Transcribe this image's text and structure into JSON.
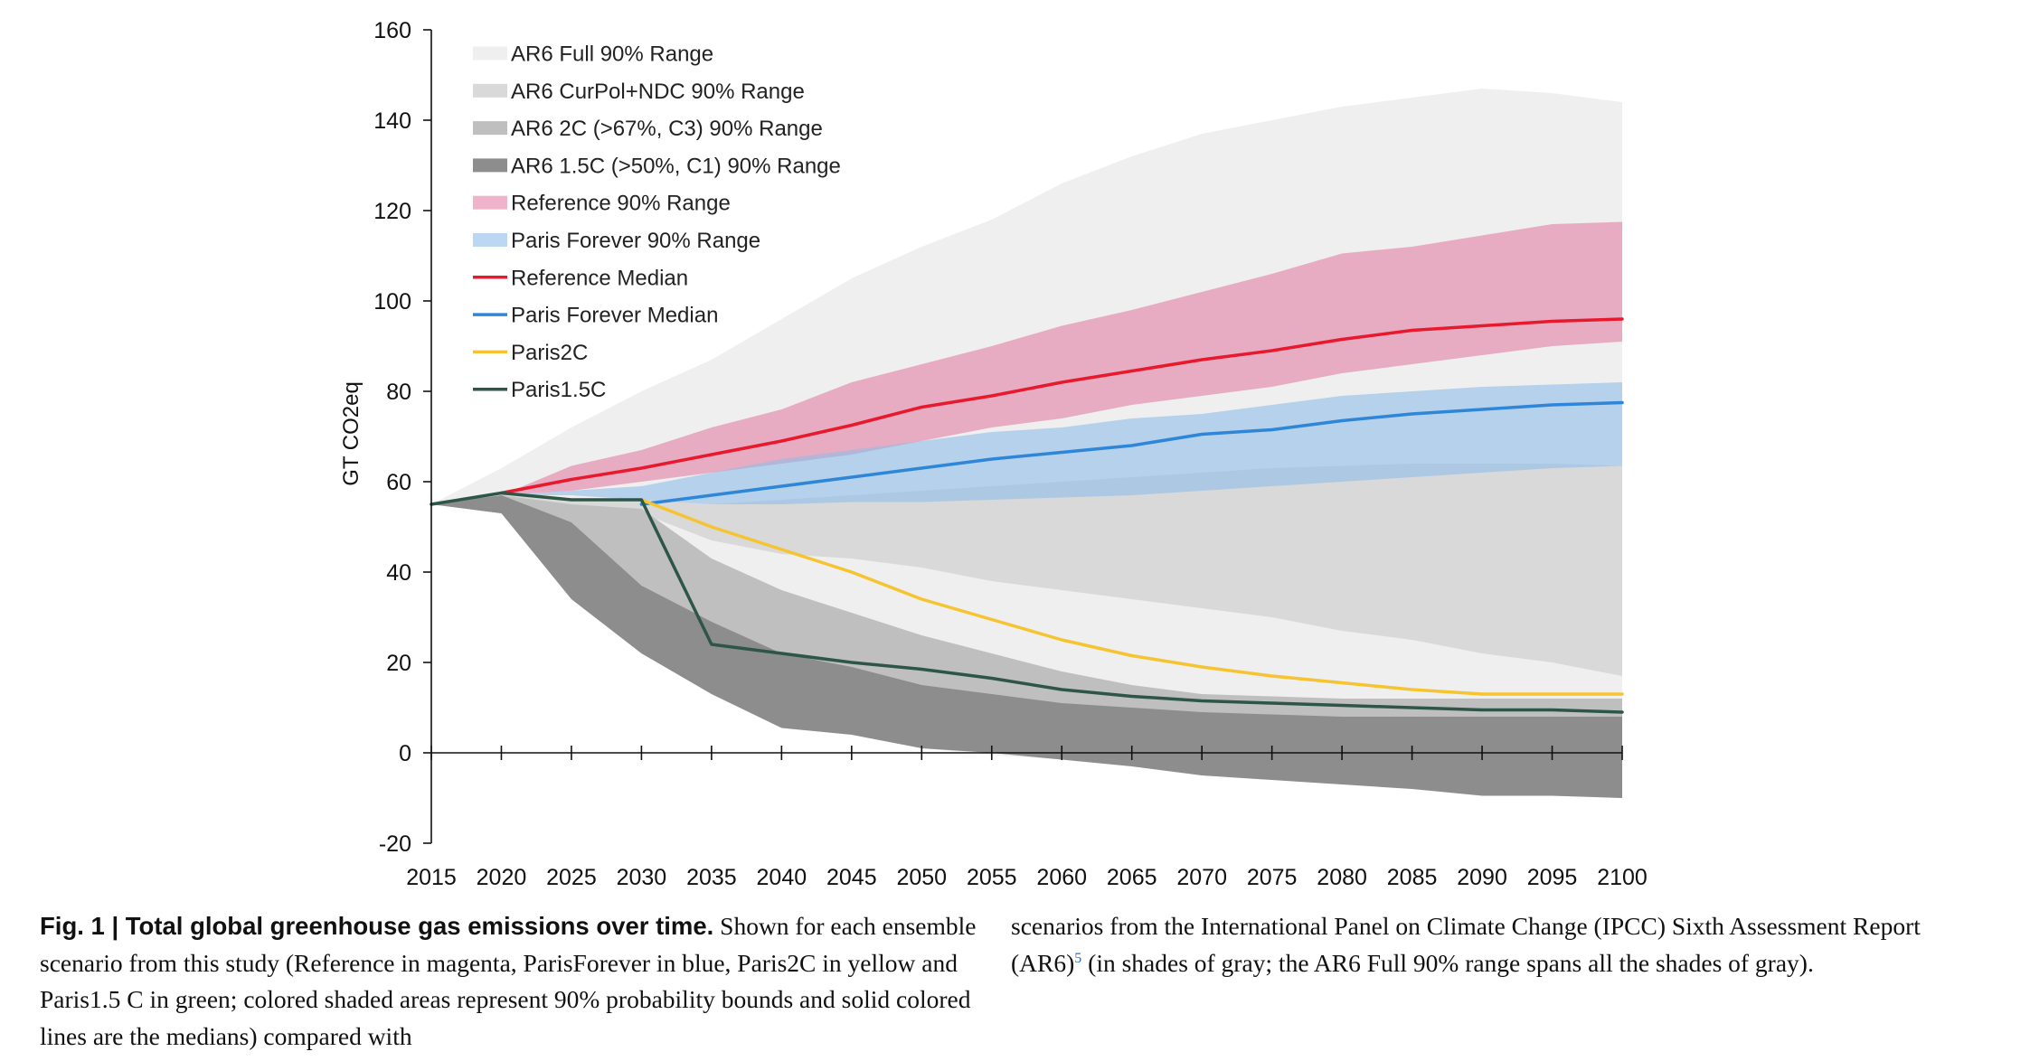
{
  "chart_data": {
    "type": "area",
    "ylabel": "GT CO2eq",
    "xlabel": "",
    "title": "",
    "x": [
      2015,
      2020,
      2025,
      2030,
      2035,
      2040,
      2045,
      2050,
      2055,
      2060,
      2065,
      2070,
      2075,
      2080,
      2085,
      2090,
      2095,
      2100
    ],
    "xticks": [
      "2015",
      "2020",
      "2025",
      "2030",
      "2035",
      "2040",
      "2045",
      "2050",
      "2055",
      "2060",
      "2065",
      "2070",
      "2075",
      "2080",
      "2085",
      "2090",
      "2095",
      "2100"
    ],
    "ylim": [
      -20,
      160
    ],
    "yticks": [
      "-20",
      "0",
      "20",
      "40",
      "60",
      "80",
      "100",
      "120",
      "140",
      "160"
    ],
    "grid": false,
    "legend_position": "top-left",
    "bands": [
      {
        "name": "AR6 Full 90% Range",
        "color": "#efefef",
        "opacity": 1,
        "low": [
          55,
          53,
          36,
          23,
          13,
          5.5,
          4,
          1,
          -0.5,
          -1.5,
          -3,
          -5,
          -6,
          -7,
          -8,
          -9,
          -9.5,
          -10
        ],
        "high": [
          55,
          63,
          72,
          80,
          87,
          96,
          105,
          112,
          118,
          126,
          132,
          137,
          140,
          143,
          145,
          147,
          146,
          144
        ]
      },
      {
        "name": "AR6 CurPol+NDC 90% Range",
        "color": "#d9d9d9",
        "opacity": 1,
        "low": [
          55,
          57,
          55,
          53,
          47,
          44,
          43,
          41,
          38,
          36,
          34,
          32,
          30,
          27,
          25,
          22,
          20,
          17
        ],
        "high": [
          55,
          57,
          56,
          56,
          55,
          56,
          57,
          58,
          59,
          60,
          61,
          62,
          63,
          63.5,
          64,
          64,
          64,
          63.5
        ]
      },
      {
        "name": "AR6 2C (>67%, C3) 90% Range",
        "color": "#bfbfbf",
        "opacity": 1,
        "low": [
          55,
          53,
          40,
          32,
          23,
          20,
          16,
          13,
          11,
          8,
          6,
          4,
          2,
          0,
          -2,
          -5,
          -6,
          -7
        ],
        "high": [
          55,
          57,
          55,
          54,
          43,
          36,
          31,
          26,
          22,
          18,
          15,
          13,
          12.5,
          12,
          12,
          12,
          12,
          12
        ]
      },
      {
        "name": "AR6 1.5C (>50%, C1) 90% Range",
        "color": "#8d8d8d",
        "opacity": 1,
        "low": [
          55,
          53,
          34,
          22,
          13,
          5.5,
          4,
          1,
          0,
          -1.5,
          -3,
          -5,
          -6,
          -7,
          -8,
          -9.5,
          -9.5,
          -10
        ],
        "high": [
          55,
          57,
          51,
          37,
          29,
          22,
          19,
          15,
          13,
          11,
          10,
          9,
          8.5,
          8,
          8,
          8,
          8,
          8
        ]
      },
      {
        "name": "Reference 90% Range",
        "color": "#e06a93",
        "opacity": 0.5,
        "low": [
          55,
          57,
          58,
          60,
          62,
          64,
          66,
          69,
          72,
          74,
          77,
          79,
          81,
          84,
          86,
          88,
          90,
          91
        ],
        "high": [
          55,
          57,
          63.5,
          67,
          72,
          76,
          82,
          86,
          90,
          94.5,
          98,
          102,
          106,
          110.5,
          112,
          114.5,
          117,
          117.5
        ]
      },
      {
        "name": "Paris Forever 90% Range",
        "color": "#8fbde8",
        "opacity": 0.6,
        "low": [
          55,
          57,
          57,
          56,
          55,
          55,
          55.5,
          55.5,
          56,
          56.5,
          57,
          58,
          59,
          60,
          61,
          62,
          63,
          63.5
        ],
        "high": [
          55,
          57,
          58,
          59,
          62,
          65,
          67,
          69,
          71,
          72,
          74,
          75,
          77,
          79,
          80,
          81,
          81.5,
          82
        ]
      }
    ],
    "series": [
      {
        "name": "Reference Median",
        "color": "#e8192c",
        "width": 3.5,
        "x": [
          2020,
          2025,
          2030,
          2035,
          2040,
          2045,
          2050,
          2055,
          2060,
          2065,
          2070,
          2075,
          2080,
          2085,
          2090,
          2095,
          2100
        ],
        "values": [
          57.5,
          60.5,
          63,
          66,
          69,
          72.5,
          76.5,
          79,
          82,
          84.5,
          87,
          89,
          91.5,
          93.5,
          94.5,
          95.5,
          96
        ]
      },
      {
        "name": "Paris Forever Median",
        "color": "#2e86d9",
        "width": 3.5,
        "x": [
          2030,
          2035,
          2040,
          2045,
          2050,
          2055,
          2060,
          2065,
          2070,
          2075,
          2080,
          2085,
          2090,
          2095,
          2100
        ],
        "values": [
          55,
          57,
          59,
          61,
          63,
          65,
          66.5,
          68,
          70.5,
          71.5,
          73.5,
          75,
          76,
          77,
          77.5
        ]
      },
      {
        "name": "Paris2C",
        "color": "#f5c430",
        "width": 3.5,
        "x": [
          2030,
          2035,
          2040,
          2045,
          2050,
          2055,
          2060,
          2065,
          2070,
          2075,
          2080,
          2085,
          2090,
          2095,
          2100
        ],
        "values": [
          56,
          50,
          45,
          40,
          34,
          29.5,
          25,
          21.5,
          19,
          17,
          15.5,
          14,
          13,
          13,
          13
        ]
      },
      {
        "name": "Paris1.5C",
        "color": "#2e5646",
        "width": 3.5,
        "x": [
          2015,
          2020,
          2025,
          2030,
          2035,
          2040,
          2045,
          2050,
          2055,
          2060,
          2065,
          2070,
          2075,
          2080,
          2085,
          2090,
          2095,
          2100
        ],
        "values": [
          55,
          57.5,
          56,
          56,
          24,
          22,
          20,
          18.5,
          16.5,
          14,
          12.5,
          11.5,
          11,
          10.5,
          10,
          9.5,
          9.5,
          9
        ]
      }
    ]
  },
  "caption": {
    "fig_label": "Fig. 1 | Total global greenhouse gas emissions over time.",
    "left_text": "Shown for each ensemble scenario from this study (Reference in magenta, ParisForever in blue, Paris2C in yellow and Paris1.5 C in green; colored shaded areas represent 90% probability bounds and solid colored lines are the medians) compared with",
    "right_text_a": "scenarios from the International Panel on Climate Change (IPCC) Sixth Assessment Report (AR6)",
    "ref": "5",
    "right_text_b": " (in shades of gray; the AR6 Full 90% range spans all the shades of gray)."
  }
}
